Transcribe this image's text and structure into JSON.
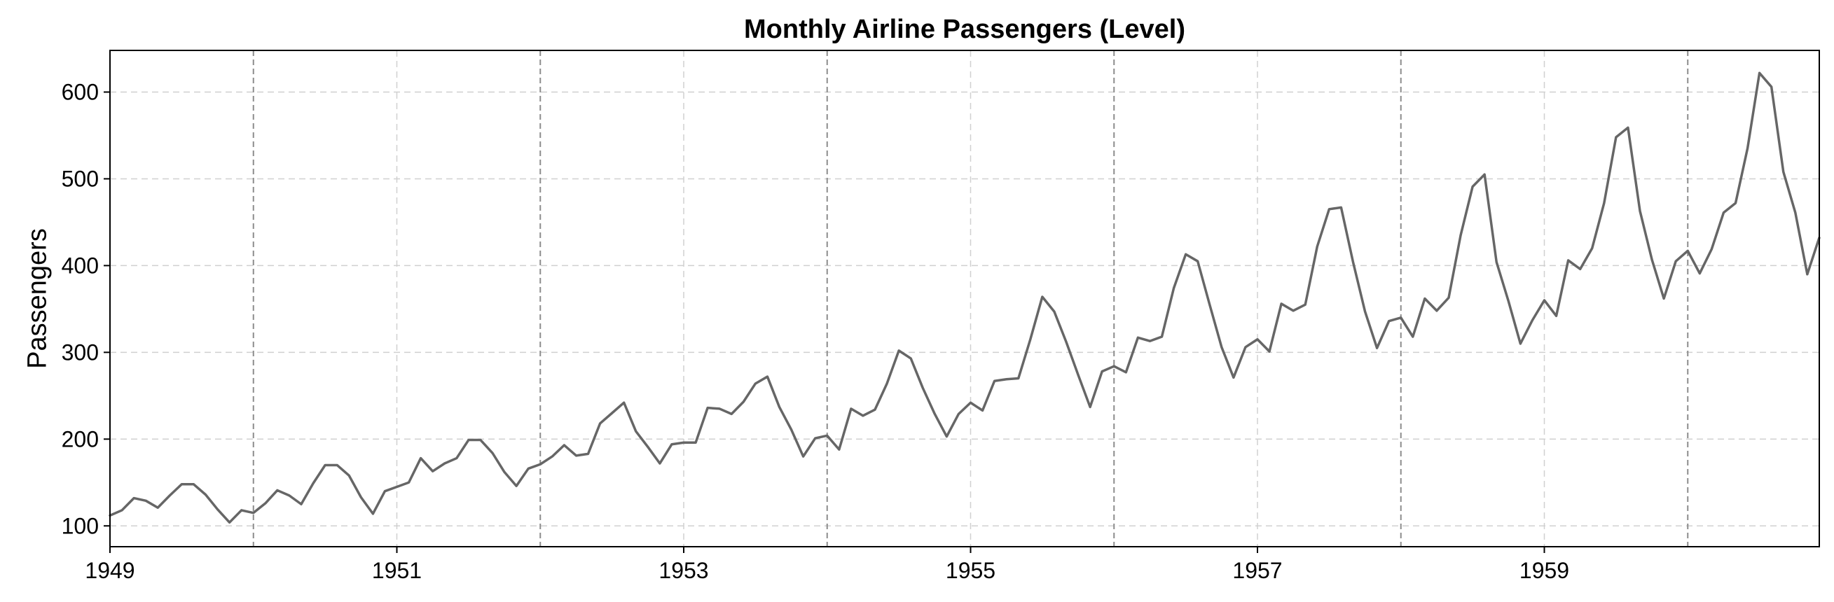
{
  "colors": {
    "series": "#666666",
    "grid": "#d0d0d0",
    "year_marker": "#8c8c8c",
    "frame": "#000000"
  },
  "chart_data": {
    "type": "line",
    "title": "Monthly Airline Passengers (Level)",
    "xlabel": "",
    "ylabel": "Passengers",
    "x_unit": "year",
    "xlim": [
      1949,
      1960.917
    ],
    "ylim": [
      76,
      648
    ],
    "xticks": [
      1949,
      1951,
      1953,
      1955,
      1957,
      1959
    ],
    "xtick_labels": [
      "1949",
      "1951",
      "1953",
      "1955",
      "1957",
      "1959"
    ],
    "yticks": [
      100,
      200,
      300,
      400,
      500,
      600
    ],
    "ytick_labels": [
      "100",
      "200",
      "300",
      "400",
      "500",
      "600"
    ],
    "grid": true,
    "year_boundaries": [
      1950,
      1952,
      1954,
      1956,
      1958,
      1960
    ],
    "legend": "none",
    "series": [
      {
        "start": "1949-01",
        "frequency": "monthly",
        "values": [
          112,
          118,
          132,
          129,
          121,
          135,
          148,
          148,
          136,
          119,
          104,
          118,
          115,
          126,
          141,
          135,
          125,
          149,
          170,
          170,
          158,
          133,
          114,
          140,
          145,
          150,
          178,
          163,
          172,
          178,
          199,
          199,
          184,
          162,
          146,
          166,
          171,
          180,
          193,
          181,
          183,
          218,
          230,
          242,
          209,
          191,
          172,
          194,
          196,
          196,
          236,
          235,
          229,
          243,
          264,
          272,
          237,
          211,
          180,
          201,
          204,
          188,
          235,
          227,
          234,
          264,
          302,
          293,
          259,
          229,
          203,
          229,
          242,
          233,
          267,
          269,
          270,
          315,
          364,
          347,
          312,
          274,
          237,
          278,
          284,
          277,
          317,
          313,
          318,
          374,
          413,
          405,
          355,
          306,
          271,
          306,
          315,
          301,
          356,
          348,
          355,
          422,
          465,
          467,
          404,
          347,
          305,
          336,
          340,
          318,
          362,
          348,
          363,
          435,
          491,
          505,
          404,
          359,
          310,
          337,
          360,
          342,
          406,
          396,
          420,
          472,
          548,
          559,
          463,
          407,
          362,
          405,
          417,
          391,
          419,
          461,
          472,
          535,
          622,
          606,
          508,
          461,
          390,
          432
        ]
      }
    ]
  }
}
